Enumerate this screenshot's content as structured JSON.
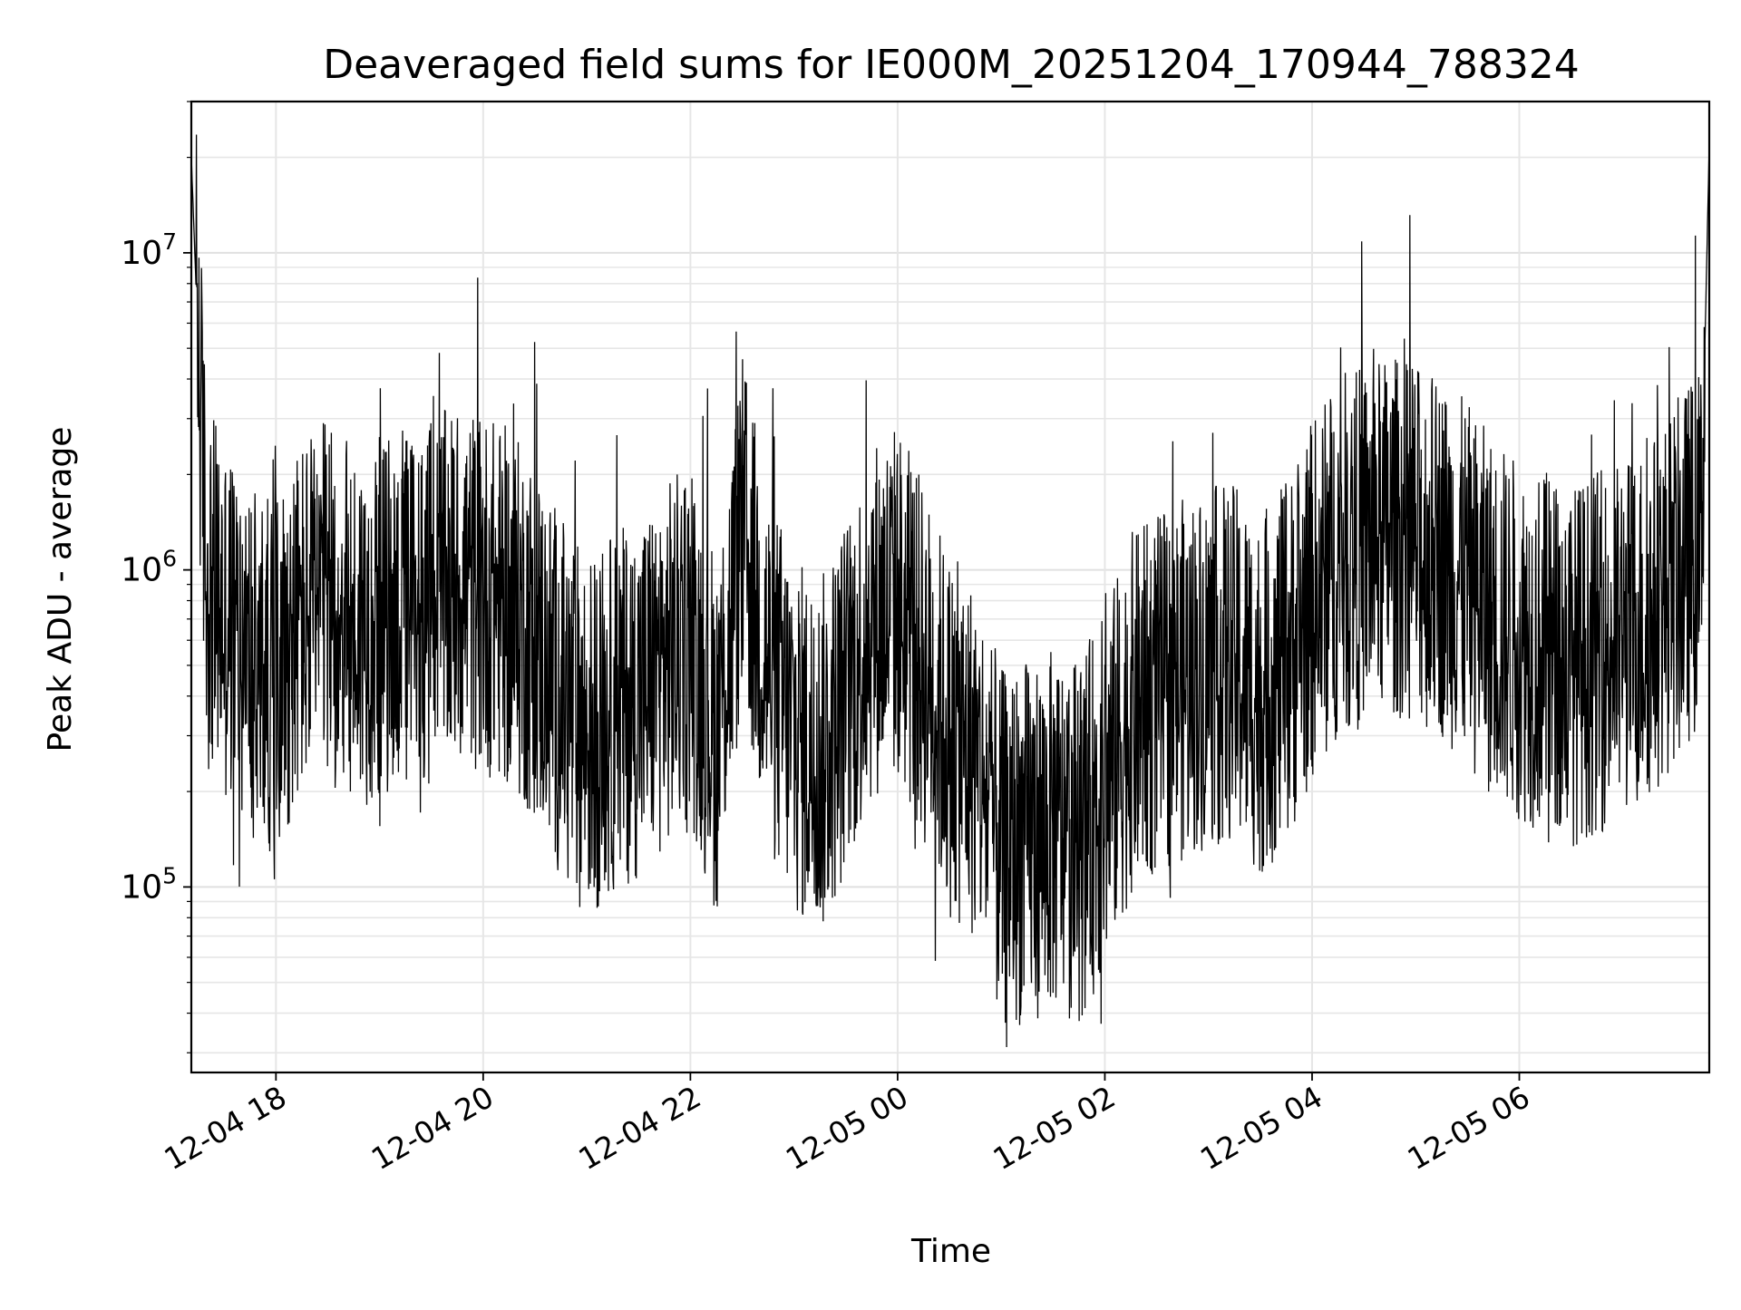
{
  "chart_data": {
    "type": "line",
    "title": "Deaveraged field sums for IE000M_20251204_170944_788324",
    "xlabel": "Time",
    "ylabel": "Peak ADU - average",
    "yscale": "log",
    "ylim": [
      26000,
      30000000
    ],
    "xlim": [
      "2025-12-04 17:11",
      "2025-12-05 07:50"
    ],
    "x_tick_labels": [
      "12-04 18",
      "12-04 20",
      "12-04 22",
      "12-05 00",
      "12-05 02",
      "12-05 04",
      "12-05 06"
    ],
    "x_tick_values": [
      "2025-12-04 18:00",
      "2025-12-04 20:00",
      "2025-12-04 22:00",
      "2025-12-05 00:00",
      "2025-12-05 02:00",
      "2025-12-05 04:00",
      "2025-12-05 06:00"
    ],
    "y_tick_labels": [
      {
        "base": "10",
        "exp": "5",
        "value": 100000
      },
      {
        "base": "10",
        "exp": "6",
        "value": 1000000
      },
      {
        "base": "10",
        "exp": "7",
        "value": 10000000
      }
    ],
    "grid": true,
    "line_color": "#000000",
    "series": [
      {
        "x": [
          "2025-12-04 17:11",
          "2025-12-04 17:20",
          "2025-12-04 17:30",
          "2025-12-04 17:40",
          "2025-12-04 17:50",
          "2025-12-04 18:00",
          "2025-12-04 18:15",
          "2025-12-04 18:30",
          "2025-12-04 18:45",
          "2025-12-04 19:00",
          "2025-12-04 19:15",
          "2025-12-04 19:30",
          "2025-12-04 19:45",
          "2025-12-04 20:00",
          "2025-12-04 20:15",
          "2025-12-04 20:30",
          "2025-12-04 20:45",
          "2025-12-04 21:00",
          "2025-12-04 21:15",
          "2025-12-04 21:30",
          "2025-12-04 21:45",
          "2025-12-04 22:00",
          "2025-12-04 22:15",
          "2025-12-04 22:30",
          "2025-12-04 22:45",
          "2025-12-04 23:00",
          "2025-12-04 23:15",
          "2025-12-04 23:30",
          "2025-12-04 23:45",
          "2025-12-05 00:00",
          "2025-12-05 00:15",
          "2025-12-05 00:30",
          "2025-12-05 00:45",
          "2025-12-05 01:00",
          "2025-12-05 01:15",
          "2025-12-05 01:30",
          "2025-12-05 01:45",
          "2025-12-05 02:00",
          "2025-12-05 02:15",
          "2025-12-05 02:30",
          "2025-12-05 02:45",
          "2025-12-05 03:00",
          "2025-12-05 03:15",
          "2025-12-05 03:30",
          "2025-12-05 03:45",
          "2025-12-05 04:00",
          "2025-12-05 04:15",
          "2025-12-05 04:30",
          "2025-12-05 04:45",
          "2025-12-05 05:00",
          "2025-12-05 05:15",
          "2025-12-05 05:30",
          "2025-12-05 05:45",
          "2025-12-05 06:00",
          "2025-12-05 06:15",
          "2025-12-05 06:30",
          "2025-12-05 06:45",
          "2025-12-05 07:00",
          "2025-12-05 07:15",
          "2025-12-05 07:30",
          "2025-12-05 07:45",
          "2025-12-05 07:50"
        ],
        "y": [
          20000000,
          900000,
          700000,
          600000,
          450000,
          500000,
          700000,
          800000,
          650000,
          700000,
          750000,
          800000,
          900000,
          850000,
          750000,
          600000,
          400000,
          300000,
          350000,
          400000,
          500000,
          600000,
          300000,
          1300000,
          500000,
          300000,
          250000,
          400000,
          700000,
          800000,
          500000,
          300000,
          250000,
          130000,
          140000,
          150000,
          140000,
          200000,
          350000,
          400000,
          450000,
          500000,
          500000,
          400000,
          500000,
          800000,
          1100000,
          1200000,
          1300000,
          1200000,
          1100000,
          900000,
          700000,
          600000,
          550000,
          500000,
          550000,
          600000,
          700000,
          900000,
          1200000,
          22000000
        ]
      }
    ]
  }
}
